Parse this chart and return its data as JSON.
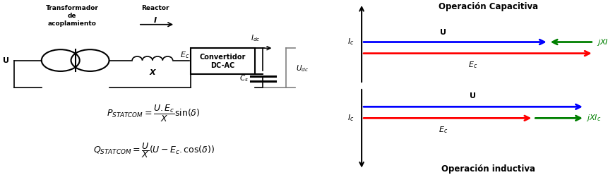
{
  "bg_color": "#ffffff",
  "formula1": "$P_{STATCOM} = \\dfrac{U.E_c}{X}\\sin(\\delta)$",
  "formula2": "$Q_{STATCOM} = \\dfrac{U}{X}\\left(U - E_c.\\cos(\\delta)\\right)$",
  "cap_title": "Operación Capacitiva",
  "ind_title": "Operación inductiva",
  "blue_color": "#0000ff",
  "red_color": "#ff0000",
  "green_color": "#008000",
  "black_color": "#000000",
  "gray_color": "#808080"
}
